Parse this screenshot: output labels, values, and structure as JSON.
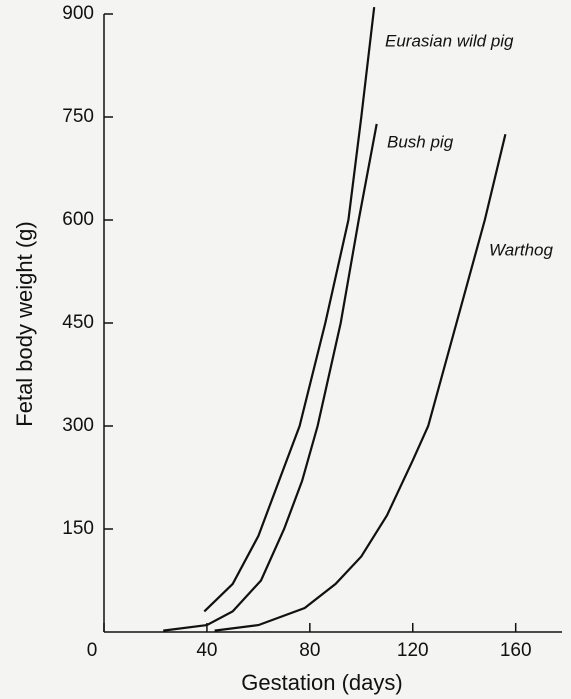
{
  "chart_data": {
    "type": "line",
    "y_label": "Fetal body weight (g)",
    "x_label": "Gestation (days)",
    "xlim": [
      0,
      178
    ],
    "ylim": [
      0,
      900
    ],
    "xticks": [
      0,
      40,
      80,
      120,
      160
    ],
    "yticks": [
      150,
      300,
      450,
      600,
      750,
      900
    ],
    "series": [
      {
        "name": "Eurasian wild pig",
        "color": "#111111",
        "x": [
          39,
          50,
          60,
          70,
          76,
          86,
          95,
          100,
          105
        ],
        "values": [
          30,
          70,
          140,
          240,
          300,
          450,
          600,
          750,
          910
        ]
      },
      {
        "name": "Bush pig",
        "color": "#111111",
        "x": [
          23,
          40,
          50,
          61,
          70,
          77,
          83,
          92,
          99,
          106
        ],
        "values": [
          2,
          10,
          30,
          75,
          150,
          220,
          300,
          450,
          600,
          740
        ]
      },
      {
        "name": "Warthog",
        "color": "#111111",
        "x": [
          43,
          60,
          78,
          90,
          100,
          110,
          120,
          126,
          137,
          148,
          156
        ],
        "values": [
          2,
          10,
          35,
          70,
          110,
          170,
          250,
          300,
          450,
          600,
          725
        ]
      }
    ]
  }
}
